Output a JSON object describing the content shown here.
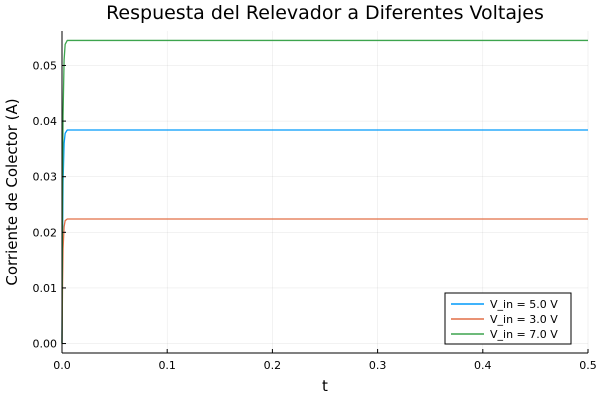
{
  "chart_data": {
    "type": "line",
    "title": "Respuesta del Relevador a Diferentes Voltajes",
    "xlabel": "t",
    "ylabel": "Corriente de Colector (A)",
    "xlim": [
      0,
      0.5
    ],
    "ylim": [
      -0.0017,
      0.0562
    ],
    "x_ticks": [
      0.0,
      0.1,
      0.2,
      0.3,
      0.4,
      0.5
    ],
    "x_tick_labels": [
      "0.0",
      "0.1",
      "0.2",
      "0.3",
      "0.4",
      "0.5"
    ],
    "y_ticks": [
      0.0,
      0.01,
      0.02,
      0.03,
      0.04,
      0.05
    ],
    "y_tick_labels": [
      "0.00",
      "0.01",
      "0.02",
      "0.03",
      "0.04",
      "0.05"
    ],
    "grid": true,
    "legend_position": "bottom-right",
    "series": [
      {
        "name": "V_in = 5.0 V",
        "color": "#009AFA",
        "x": [
          0,
          0.0005,
          0.001,
          0.002,
          0.003,
          0.005,
          0.5
        ],
        "y": [
          0,
          0.018,
          0.029,
          0.036,
          0.0378,
          0.0384,
          0.0384
        ]
      },
      {
        "name": "V_in = 3.0 V",
        "color": "#E26F46",
        "x": [
          0,
          0.0005,
          0.001,
          0.002,
          0.003,
          0.005,
          0.5
        ],
        "y": [
          0,
          0.0105,
          0.017,
          0.021,
          0.0221,
          0.0224,
          0.0224
        ]
      },
      {
        "name": "V_in = 7.0 V",
        "color": "#3DA44E",
        "x": [
          0,
          0.0005,
          0.001,
          0.002,
          0.003,
          0.005,
          0.5
        ],
        "y": [
          0,
          0.026,
          0.041,
          0.051,
          0.0538,
          0.0545,
          0.0545
        ]
      }
    ]
  }
}
